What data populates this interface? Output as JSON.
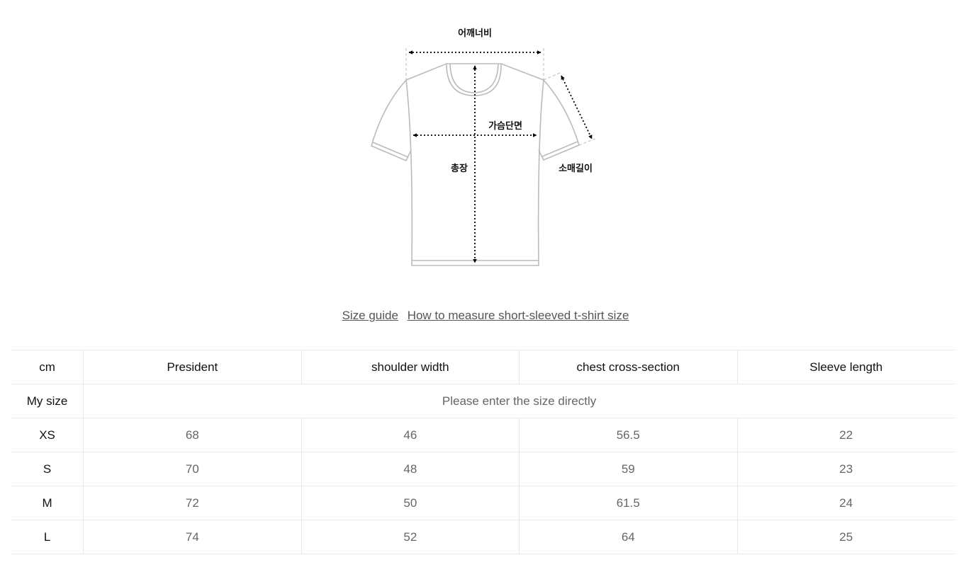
{
  "diagram": {
    "labels": {
      "shoulder": "어깨너비",
      "chest": "가슴단면",
      "length": "총장",
      "sleeve": "소매길이"
    }
  },
  "links": [
    "Size guide",
    "How to measure short-sleeved t-shirt size"
  ],
  "table": {
    "headers": [
      "cm",
      "President",
      "shoulder width",
      "chest cross-section",
      "Sleeve length"
    ],
    "my_size": {
      "label": "My size",
      "placeholder": "Please enter the size directly"
    },
    "rows": [
      {
        "size": "XS",
        "values": [
          "68",
          "46",
          "56.5",
          "22"
        ]
      },
      {
        "size": "S",
        "values": [
          "70",
          "48",
          "59",
          "23"
        ]
      },
      {
        "size": "M",
        "values": [
          "72",
          "50",
          "61.5",
          "24"
        ]
      },
      {
        "size": "L",
        "values": [
          "74",
          "52",
          "64",
          "25"
        ]
      }
    ]
  }
}
